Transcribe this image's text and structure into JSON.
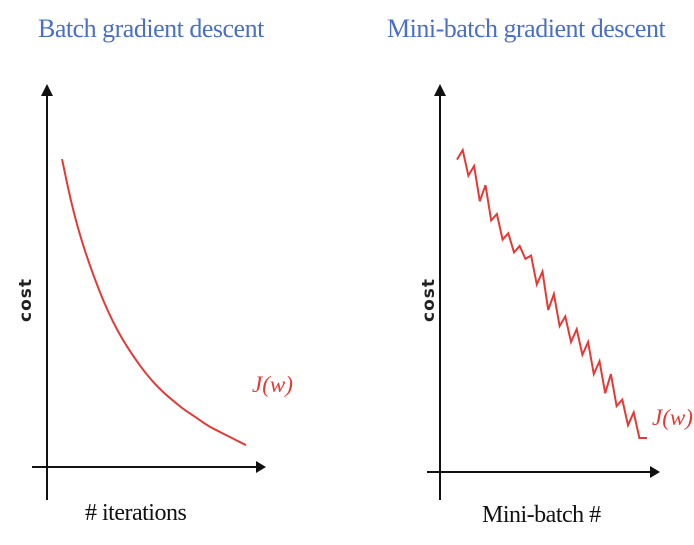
{
  "chart_data": [
    {
      "type": "line",
      "title": "Batch gradient descent",
      "xlabel": "# iterations",
      "ylabel": "cost",
      "series": [
        {
          "name": "J(w)",
          "x": [
            0,
            0.05,
            0.1,
            0.15,
            0.2,
            0.25,
            0.3,
            0.35,
            0.4,
            0.45,
            0.5,
            0.55,
            0.6,
            0.65,
            0.7,
            0.75,
            0.8,
            0.85,
            0.9,
            0.95,
            1.0
          ],
          "y": [
            1.0,
            0.86,
            0.75,
            0.66,
            0.58,
            0.51,
            0.45,
            0.4,
            0.355,
            0.315,
            0.28,
            0.25,
            0.225,
            0.2,
            0.18,
            0.16,
            0.14,
            0.125,
            0.11,
            0.095,
            0.08
          ]
        }
      ],
      "color": "#e53935",
      "curve_label": "J(w)",
      "xlim": [
        0,
        1
      ],
      "ylim": [
        0,
        1.1
      ],
      "grid": false,
      "smooth": true
    },
    {
      "type": "line",
      "title": "Mini-batch gradient descent",
      "xlabel": "Mini-batch #",
      "ylabel": "cost",
      "series": [
        {
          "name": "J(w)",
          "x": [
            0.0,
            0.03,
            0.06,
            0.09,
            0.12,
            0.15,
            0.18,
            0.21,
            0.24,
            0.27,
            0.3,
            0.33,
            0.36,
            0.39,
            0.42,
            0.45,
            0.48,
            0.51,
            0.54,
            0.57,
            0.6,
            0.63,
            0.66,
            0.69,
            0.72,
            0.75,
            0.78,
            0.81,
            0.84,
            0.87,
            0.9,
            0.93,
            0.96,
            1.0
          ],
          "y": [
            0.97,
            1.0,
            0.92,
            0.95,
            0.84,
            0.89,
            0.78,
            0.8,
            0.72,
            0.74,
            0.68,
            0.7,
            0.66,
            0.67,
            0.58,
            0.62,
            0.5,
            0.55,
            0.45,
            0.48,
            0.4,
            0.44,
            0.36,
            0.4,
            0.3,
            0.34,
            0.24,
            0.3,
            0.2,
            0.22,
            0.14,
            0.18,
            0.1,
            0.1
          ]
        }
      ],
      "color": "#e53935",
      "curve_label": "J(w)",
      "xlim": [
        0,
        1
      ],
      "ylim": [
        0,
        1.1
      ],
      "grid": false,
      "smooth": false
    }
  ]
}
